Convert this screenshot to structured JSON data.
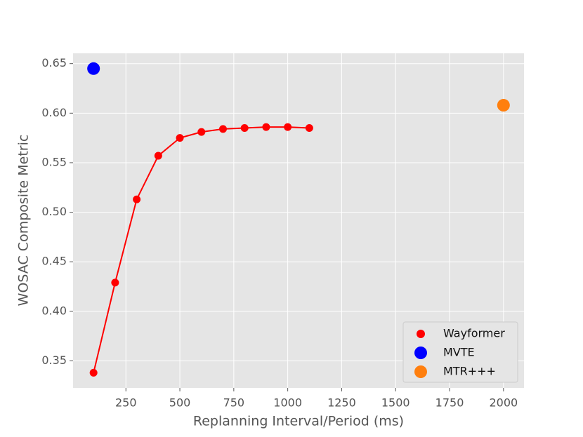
{
  "chart_data": {
    "type": "scatter",
    "x_label": "Replanning Interval/Period (ms)",
    "y_label": "WOSAC Composite Metric",
    "xlim": [
      5,
      2095
    ],
    "ylim": [
      0.3227,
      0.6604
    ],
    "xticks": [
      250,
      500,
      750,
      1000,
      1250,
      1500,
      1750,
      2000
    ],
    "yticks": [
      0.35,
      {
        "value": 0.4,
        "label": "0.40"
      },
      0.45,
      {
        "value": 0.5,
        "label": "0.50"
      },
      0.55,
      {
        "value": 0.6,
        "label": "0.60"
      },
      0.65
    ],
    "grid": true,
    "legend": "lower right",
    "series": [
      {
        "name": "Wayformer",
        "color": "#ff0000",
        "line": true,
        "x": [
          100,
          200,
          300,
          400,
          500,
          600,
          700,
          800,
          900,
          1000,
          1100
        ],
        "values": [
          0.338,
          0.429,
          0.513,
          0.557,
          0.575,
          0.581,
          0.584,
          0.585,
          0.586,
          0.586,
          0.585
        ]
      },
      {
        "name": "MVTE",
        "color": "#0000ff",
        "line": false,
        "x": [
          100
        ],
        "values": [
          0.645
        ]
      },
      {
        "name": "MTR+++",
        "color": "#ff7f0e",
        "line": false,
        "x": [
          2000
        ],
        "values": [
          0.608
        ]
      }
    ]
  }
}
